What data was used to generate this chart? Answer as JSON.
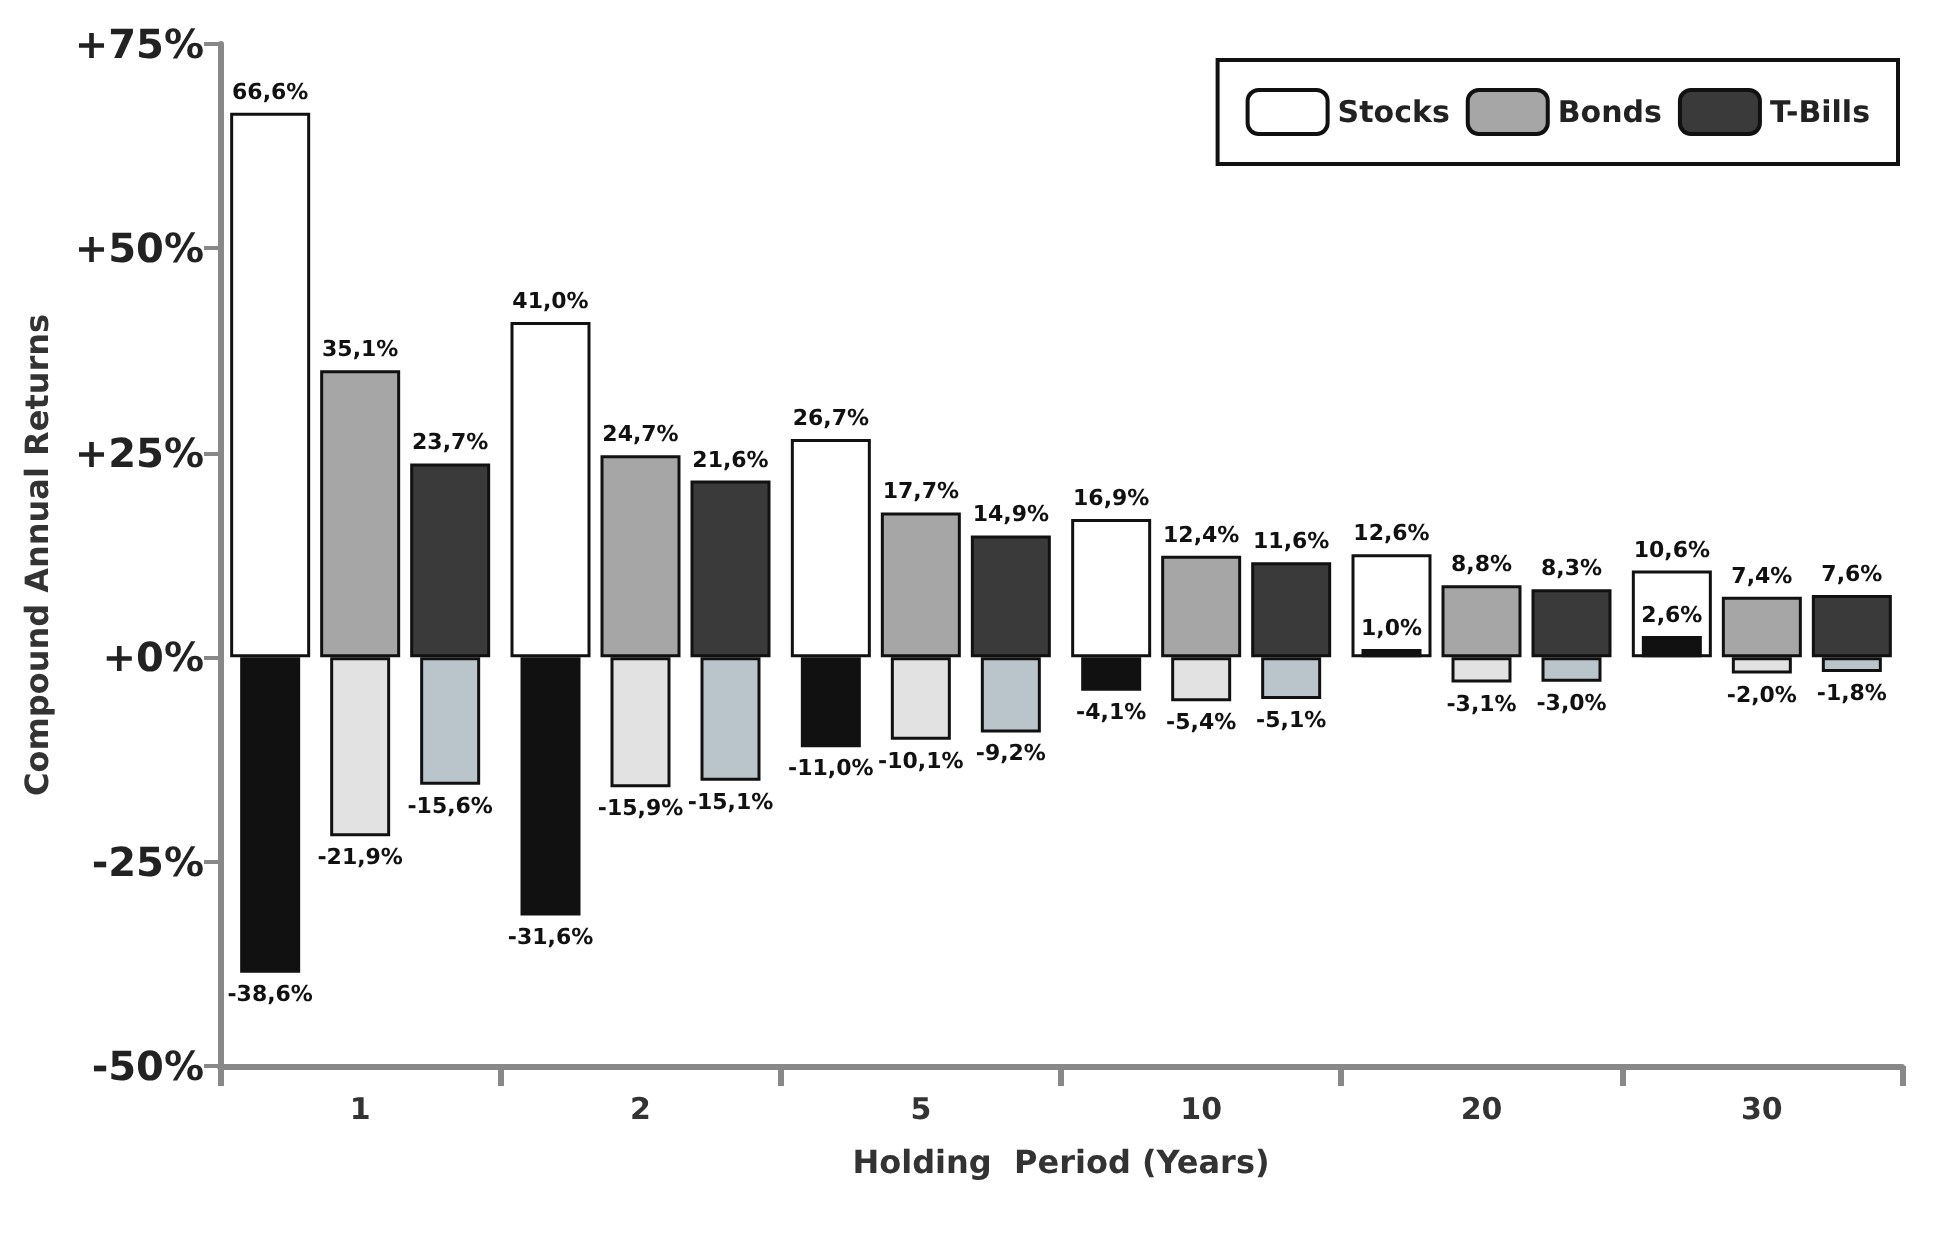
{
  "chart_data": {
    "type": "bar",
    "xlabel": "Holding  Period (Years)",
    "ylabel": "Compound Annual Returns",
    "categories": [
      "1",
      "2",
      "5",
      "10",
      "20",
      "30"
    ],
    "series": [
      {
        "name": "Stocks",
        "color": "#ffffff",
        "values": [
          66.6,
          41.0,
          26.7,
          16.9,
          12.6,
          10.6
        ],
        "value_labels": [
          "66,6%",
          "41,0%",
          "26,7%",
          "16,9%",
          "12,6%",
          "10,6%"
        ]
      },
      {
        "color": "#111111",
        "values": [
          -38.6,
          -31.6,
          -11.0,
          -4.1,
          1.0,
          2.6
        ],
        "value_labels": [
          "-38,6%",
          "-31,6%",
          "-11,0%",
          "-4,1%",
          "1,0%",
          "2,6%"
        ]
      },
      {
        "name": "Bonds",
        "color": "#a6a6a6",
        "values": [
          35.1,
          24.7,
          17.7,
          12.4,
          8.8,
          7.4
        ],
        "value_labels": [
          "35,1%",
          "24,7%",
          "17,7%",
          "12,4%",
          "8,8%",
          "7,4%"
        ]
      },
      {
        "color": "#e2e2e2",
        "values": [
          -21.9,
          -15.9,
          -10.1,
          -5.4,
          -3.1,
          -2.0
        ],
        "value_labels": [
          "-21,9%",
          "-15,9%",
          "-10,1%",
          "-5,4%",
          "-3,1%",
          "-2,0%"
        ]
      },
      {
        "name": "T-Bills",
        "color": "#3a3a3a",
        "values": [
          23.7,
          21.6,
          14.9,
          11.6,
          8.3,
          7.6
        ],
        "value_labels": [
          "23,7%",
          "21,6%",
          "14,9%",
          "11,6%",
          "8,3%",
          "7,6%"
        ]
      },
      {
        "color": "#b9c4cb",
        "values": [
          -15.6,
          -15.1,
          -9.2,
          -5.1,
          -3.0,
          -1.8
        ],
        "value_labels": [
          "-15,6%",
          "-15,1%",
          "-9,2%",
          "-5,1%",
          "-3,0%",
          "-1,8%"
        ]
      }
    ],
    "ylim": [
      -50,
      75
    ],
    "yticks": [
      {
        "value": -50,
        "label": "-50%"
      },
      {
        "value": -25,
        "label": "-25%"
      },
      {
        "value": 0,
        "label": "+0%"
      },
      {
        "value": 25,
        "label": "+25%"
      },
      {
        "value": 50,
        "label": "+50%"
      },
      {
        "value": 75,
        "label": "+75%"
      }
    ],
    "grid": false,
    "legend": "top right"
  }
}
